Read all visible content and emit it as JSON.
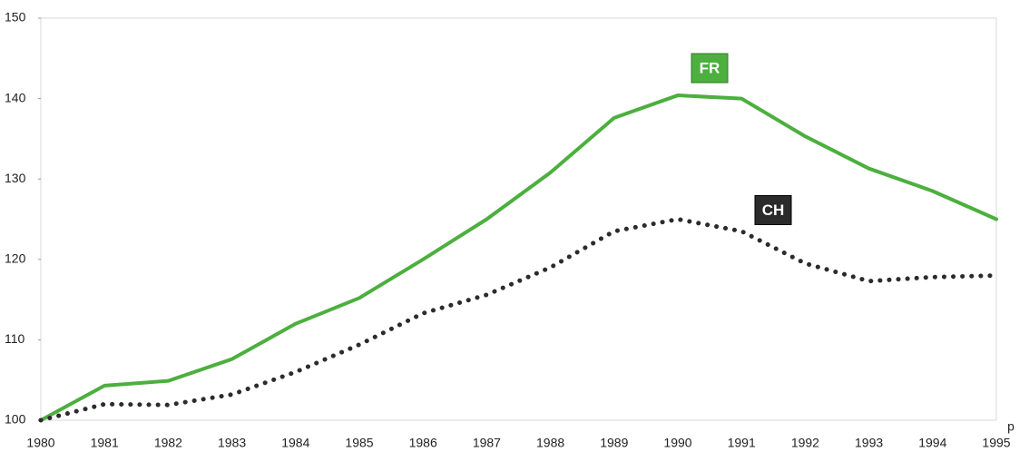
{
  "chart_data": {
    "type": "line",
    "categories": [
      "1980",
      "1981",
      "1982",
      "1983",
      "1984",
      "1985",
      "1986",
      "1987",
      "1988",
      "1989",
      "1990",
      "1991",
      "1992",
      "1993",
      "1994",
      "1995"
    ],
    "series": [
      {
        "name": "FR",
        "color": "#4caf3e",
        "style": "solid",
        "values": [
          100,
          104.3,
          104.9,
          107.6,
          112,
          115.2,
          120,
          125,
          130.8,
          137.6,
          140.4,
          140,
          135.3,
          131.3,
          128.5,
          125
        ]
      },
      {
        "name": "CH",
        "color": "#2b2b2b",
        "style": "dotted",
        "values": [
          100,
          102,
          101.9,
          103.2,
          106,
          109.4,
          113.3,
          115.6,
          119,
          123.5,
          125,
          123.5,
          119.5,
          117.3,
          117.8,
          118
        ]
      }
    ],
    "annotations": [
      "p"
    ],
    "ylim": [
      100,
      150
    ],
    "yticks": [
      100,
      110,
      120,
      130,
      140,
      150
    ],
    "grid": false
  }
}
